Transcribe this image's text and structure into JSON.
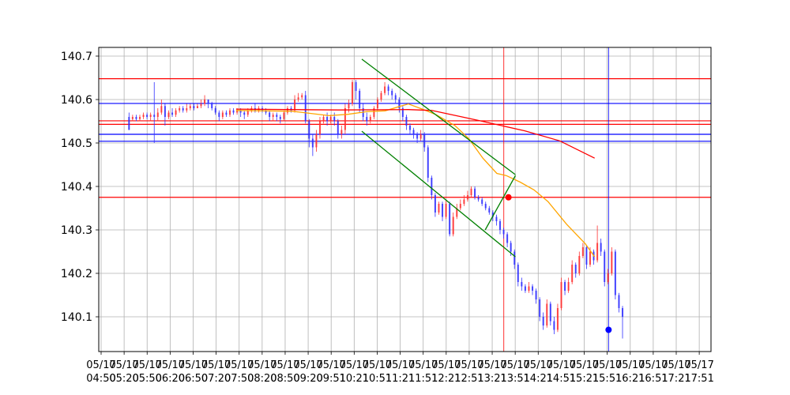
{
  "chart_data": {
    "type": "candlestick",
    "title": "",
    "xlabel": "",
    "ylabel": "",
    "ylim": [
      140.02,
      140.72
    ],
    "grid": true,
    "y_ticks": [
      140.1,
      140.2,
      140.3,
      140.4,
      140.5,
      140.6,
      140.7
    ],
    "x_ticks": [
      [
        "05/17",
        "04:50"
      ],
      [
        "05/17",
        "05:20"
      ],
      [
        "05/17",
        "05:50"
      ],
      [
        "05/17",
        "06:20"
      ],
      [
        "05/17",
        "06:50"
      ],
      [
        "05/17",
        "07:20"
      ],
      [
        "05/17",
        "07:50"
      ],
      [
        "05/17",
        "08:20"
      ],
      [
        "05/17",
        "08:50"
      ],
      [
        "05/17",
        "09:20"
      ],
      [
        "05/17",
        "09:51"
      ],
      [
        "05/17",
        "10:21"
      ],
      [
        "05/17",
        "10:51"
      ],
      [
        "05/17",
        "11:21"
      ],
      [
        "05/17",
        "11:51"
      ],
      [
        "05/17",
        "12:21"
      ],
      [
        "05/17",
        "12:51"
      ],
      [
        "05/17",
        "13:21"
      ],
      [
        "05/17",
        "13:51"
      ],
      [
        "05/17",
        "14:21"
      ],
      [
        "05/17",
        "14:51"
      ],
      [
        "05/17",
        "15:21"
      ],
      [
        "05/17",
        "15:51"
      ],
      [
        "05/17",
        "16:21"
      ],
      [
        "05/17",
        "16:51"
      ],
      [
        "05/17",
        "17:21"
      ],
      [
        "05/17",
        "17:51"
      ]
    ],
    "x_range": [
      -3,
      260
    ],
    "candles": [
      [
        140.56,
        140.53,
        140.57,
        140.53
      ],
      [
        140.555,
        140.56,
        140.565,
        140.55
      ],
      [
        140.56,
        140.555,
        140.565,
        140.55
      ],
      [
        140.555,
        140.56,
        140.565,
        140.55
      ],
      [
        140.56,
        140.565,
        140.57,
        140.555
      ],
      [
        140.565,
        140.56,
        140.57,
        140.555
      ],
      [
        140.56,
        140.565,
        140.57,
        140.55
      ],
      [
        140.565,
        140.56,
        140.64,
        140.5
      ],
      [
        140.56,
        140.57,
        140.58,
        140.55
      ],
      [
        140.57,
        140.585,
        140.6,
        140.565
      ],
      [
        140.585,
        140.56,
        140.59,
        140.54
      ],
      [
        140.56,
        140.57,
        140.575,
        140.555
      ],
      [
        140.57,
        140.565,
        140.58,
        140.56
      ],
      [
        140.565,
        140.575,
        140.58,
        140.56
      ],
      [
        140.575,
        140.58,
        140.585,
        140.57
      ],
      [
        140.58,
        140.575,
        140.585,
        140.57
      ],
      [
        140.575,
        140.58,
        140.59,
        140.57
      ],
      [
        140.58,
        140.585,
        140.59,
        140.575
      ],
      [
        140.585,
        140.58,
        140.59,
        140.575
      ],
      [
        140.58,
        140.585,
        140.59,
        140.58
      ],
      [
        140.585,
        140.59,
        140.6,
        140.58
      ],
      [
        140.59,
        140.6,
        140.61,
        140.585
      ],
      [
        140.6,
        140.59,
        140.6,
        140.58
      ],
      [
        140.59,
        140.58,
        140.595,
        140.575
      ],
      [
        140.58,
        140.57,
        140.585,
        140.565
      ],
      [
        140.57,
        140.56,
        140.575,
        140.55
      ],
      [
        140.56,
        140.57,
        140.575,
        140.555
      ],
      [
        140.57,
        140.565,
        140.575,
        140.56
      ],
      [
        140.565,
        140.575,
        140.58,
        140.56
      ],
      [
        140.575,
        140.57,
        140.58,
        140.565
      ],
      [
        140.57,
        140.575,
        140.58,
        140.565
      ],
      [
        140.575,
        140.57,
        140.58,
        140.56
      ],
      [
        140.57,
        140.565,
        140.575,
        140.555
      ],
      [
        140.565,
        140.575,
        140.58,
        140.56
      ],
      [
        140.575,
        140.58,
        140.585,
        140.57
      ],
      [
        140.58,
        140.575,
        140.59,
        140.57
      ],
      [
        140.575,
        140.58,
        140.585,
        140.57
      ],
      [
        140.58,
        140.575,
        140.585,
        140.57
      ],
      [
        140.575,
        140.57,
        140.58,
        140.565
      ],
      [
        140.57,
        140.56,
        140.575,
        140.55
      ],
      [
        140.56,
        140.565,
        140.57,
        140.55
      ],
      [
        140.565,
        140.56,
        140.57,
        140.55
      ],
      [
        140.56,
        140.555,
        140.565,
        140.545
      ],
      [
        140.555,
        140.57,
        140.575,
        140.55
      ],
      [
        140.57,
        140.58,
        140.585,
        140.565
      ],
      [
        140.58,
        140.575,
        140.585,
        140.57
      ],
      [
        140.575,
        140.6,
        140.61,
        140.57
      ],
      [
        140.6,
        140.605,
        140.615,
        140.595
      ],
      [
        140.605,
        140.61,
        140.615,
        140.6
      ],
      [
        140.61,
        140.55,
        140.62,
        140.545
      ],
      [
        140.55,
        140.51,
        140.555,
        140.49
      ],
      [
        140.51,
        140.49,
        140.52,
        140.47
      ],
      [
        140.49,
        140.52,
        140.53,
        140.48
      ],
      [
        140.52,
        140.55,
        140.56,
        140.51
      ],
      [
        140.55,
        140.56,
        140.565,
        140.545
      ],
      [
        140.56,
        140.55,
        140.57,
        140.54
      ],
      [
        140.55,
        140.56,
        140.565,
        140.545
      ],
      [
        140.56,
        140.55,
        140.57,
        140.54
      ],
      [
        140.55,
        140.52,
        140.555,
        140.51
      ],
      [
        140.52,
        140.53,
        140.54,
        140.51
      ],
      [
        140.53,
        140.58,
        140.59,
        140.52
      ],
      [
        140.58,
        140.59,
        140.6,
        140.57
      ],
      [
        140.59,
        140.64,
        140.645,
        140.585
      ],
      [
        140.64,
        140.62,
        140.645,
        140.6
      ],
      [
        140.62,
        140.58,
        140.625,
        140.57
      ],
      [
        140.58,
        140.56,
        140.59,
        140.55
      ],
      [
        140.56,
        140.55,
        140.57,
        140.54
      ],
      [
        140.55,
        140.56,
        140.565,
        140.545
      ],
      [
        140.56,
        140.58,
        140.585,
        140.555
      ],
      [
        140.58,
        140.6,
        140.605,
        140.575
      ],
      [
        140.6,
        140.615,
        140.62,
        140.595
      ],
      [
        140.615,
        140.63,
        140.64,
        140.61
      ],
      [
        140.63,
        140.62,
        140.635,
        140.61
      ],
      [
        140.62,
        140.61,
        140.625,
        140.6
      ],
      [
        140.61,
        140.6,
        140.615,
        140.59
      ],
      [
        140.6,
        140.58,
        140.605,
        140.57
      ],
      [
        140.58,
        140.56,
        140.585,
        140.55
      ],
      [
        140.56,
        140.54,
        140.565,
        140.53
      ],
      [
        140.54,
        140.53,
        140.545,
        140.52
      ],
      [
        140.53,
        140.52,
        140.535,
        140.51
      ],
      [
        140.52,
        140.51,
        140.525,
        140.5
      ],
      [
        140.51,
        140.52,
        140.53,
        140.505
      ],
      [
        140.52,
        140.49,
        140.525,
        140.48
      ],
      [
        140.49,
        140.42,
        140.495,
        140.41
      ],
      [
        140.42,
        140.38,
        140.425,
        140.37
      ],
      [
        140.38,
        140.34,
        140.385,
        140.33
      ],
      [
        140.34,
        140.36,
        140.365,
        140.335
      ],
      [
        140.36,
        140.33,
        140.365,
        140.32
      ],
      [
        140.33,
        140.36,
        140.37,
        140.325
      ],
      [
        140.36,
        140.29,
        140.365,
        140.285
      ],
      [
        140.29,
        140.33,
        140.34,
        140.285
      ],
      [
        140.33,
        140.35,
        140.36,
        140.325
      ],
      [
        140.35,
        140.36,
        140.37,
        140.345
      ],
      [
        140.36,
        140.37,
        140.38,
        140.355
      ],
      [
        140.37,
        140.38,
        140.39,
        140.365
      ],
      [
        140.38,
        140.395,
        140.4,
        140.375
      ],
      [
        140.395,
        140.375,
        140.4,
        140.37
      ],
      [
        140.375,
        140.37,
        140.38,
        140.365
      ],
      [
        140.37,
        140.36,
        140.375,
        140.355
      ],
      [
        140.36,
        140.35,
        140.365,
        140.345
      ],
      [
        140.35,
        140.34,
        140.355,
        140.335
      ],
      [
        140.34,
        140.33,
        140.345,
        140.32
      ],
      [
        140.33,
        140.32,
        140.335,
        140.31
      ],
      [
        140.32,
        140.3,
        140.325,
        140.29
      ],
      [
        140.3,
        140.29,
        140.305,
        140.28
      ],
      [
        140.29,
        140.27,
        140.295,
        140.26
      ],
      [
        140.27,
        140.25,
        140.275,
        140.24
      ],
      [
        140.25,
        140.22,
        140.255,
        140.21
      ],
      [
        140.22,
        140.18,
        140.225,
        140.17
      ],
      [
        140.18,
        140.17,
        140.19,
        140.16
      ],
      [
        140.17,
        140.16,
        140.175,
        140.155
      ],
      [
        140.16,
        140.17,
        140.18,
        140.155
      ],
      [
        140.17,
        140.16,
        140.175,
        140.15
      ],
      [
        140.16,
        140.14,
        140.165,
        140.13
      ],
      [
        140.14,
        140.1,
        140.145,
        140.09
      ],
      [
        140.1,
        140.08,
        140.11,
        140.07
      ],
      [
        140.08,
        140.13,
        140.14,
        140.075
      ],
      [
        140.13,
        140.09,
        140.135,
        140.08
      ],
      [
        140.09,
        140.07,
        140.1,
        140.06
      ],
      [
        140.07,
        140.12,
        140.13,
        140.065
      ],
      [
        140.12,
        140.18,
        140.19,
        140.115
      ],
      [
        140.18,
        140.16,
        140.185,
        140.15
      ],
      [
        140.16,
        140.18,
        140.19,
        140.155
      ],
      [
        140.18,
        140.22,
        140.23,
        140.175
      ],
      [
        140.22,
        140.2,
        140.225,
        140.19
      ],
      [
        140.2,
        140.24,
        140.25,
        140.195
      ],
      [
        140.24,
        140.26,
        140.27,
        140.235
      ],
      [
        140.26,
        140.22,
        140.265,
        140.21
      ],
      [
        140.22,
        140.25,
        140.26,
        140.215
      ],
      [
        140.25,
        140.23,
        140.255,
        140.22
      ],
      [
        140.23,
        140.27,
        140.31,
        140.225
      ],
      [
        140.27,
        140.25,
        140.28,
        140.24
      ],
      [
        140.25,
        140.18,
        140.255,
        140.17
      ],
      [
        140.18,
        140.2,
        140.21,
        140.175
      ],
      [
        140.2,
        140.25,
        140.26,
        140.195
      ],
      [
        140.25,
        140.15,
        140.255,
        140.14
      ],
      [
        140.15,
        140.12,
        140.155,
        140.11
      ],
      [
        140.12,
        140.1,
        140.125,
        140.05
      ]
    ],
    "horizontal_lines": [
      {
        "value": 140.648,
        "color": "#ff0000"
      },
      {
        "value": 140.591,
        "color": "#0000ff"
      },
      {
        "value": 140.551,
        "color": "#ff0000"
      },
      {
        "value": 140.543,
        "color": "#ff0000"
      },
      {
        "value": 140.52,
        "color": "#0000ff"
      },
      {
        "value": 140.504,
        "color": "#0000ff"
      },
      {
        "value": 140.375,
        "color": "#ff0000"
      }
    ],
    "vertical_lines": [
      {
        "x": 171,
        "color": "#ff0000"
      },
      {
        "x": 216,
        "color": "#0000ff"
      }
    ],
    "moving_averages": [
      {
        "color": "#ffa500",
        "points": [
          [
            56,
            140.575
          ],
          [
            80,
            140.573
          ],
          [
            96,
            140.563
          ],
          [
            104,
            140.566
          ],
          [
            112,
            140.572
          ],
          [
            120,
            140.574
          ],
          [
            130,
            140.59
          ],
          [
            136,
            140.578
          ],
          [
            142,
            140.565
          ],
          [
            150,
            140.54
          ],
          [
            156,
            140.51
          ],
          [
            162,
            140.465
          ],
          [
            168,
            140.43
          ],
          [
            172,
            140.425
          ],
          [
            178,
            140.41
          ],
          [
            184,
            140.392
          ],
          [
            190,
            140.365
          ],
          [
            198,
            140.313
          ],
          [
            206,
            140.268
          ],
          [
            210,
            140.238
          ]
        ]
      },
      {
        "color": "#ff0000",
        "points": [
          [
            56,
            140.578
          ],
          [
            100,
            140.576
          ],
          [
            130,
            140.577
          ],
          [
            140,
            140.575
          ],
          [
            160,
            140.552
          ],
          [
            180,
            140.528
          ],
          [
            195,
            140.505
          ],
          [
            210,
            140.465
          ]
        ]
      }
    ],
    "trend_lines": [
      {
        "color": "#008000",
        "points": [
          [
            110,
            140.693
          ],
          [
            176,
            140.427
          ]
        ]
      },
      {
        "color": "#008000",
        "points": [
          [
            110,
            140.527
          ],
          [
            176,
            140.238
          ]
        ]
      },
      {
        "color": "#008000",
        "points": [
          [
            163,
            140.3
          ],
          [
            176,
            140.425
          ]
        ]
      }
    ],
    "markers": [
      {
        "x": 173,
        "y": 140.375,
        "color": "#ff0000"
      },
      {
        "x": 216,
        "y": 140.07,
        "color": "#0000ff"
      }
    ]
  }
}
